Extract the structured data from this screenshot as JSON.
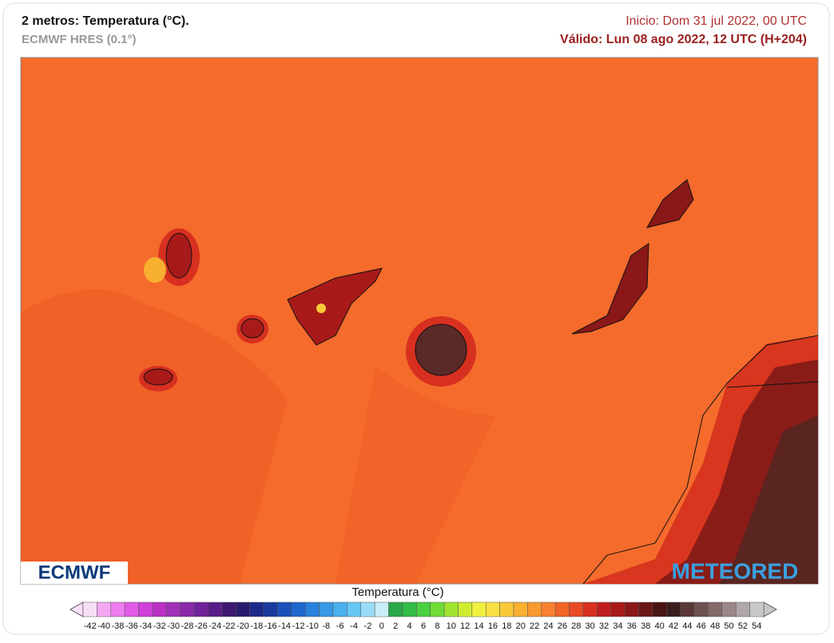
{
  "header": {
    "title": "2 metros: Temperatura (°C).",
    "model": "ECMWF HRES (0.1°)",
    "init": "Inicio: Dom 31 jul 2022, 00 UTC",
    "valid": "Válido: Lun 08 ago 2022, 12 UTC (H+204)"
  },
  "logos": {
    "left": "ECMWF",
    "right": "METEORED"
  },
  "legend": {
    "title": "Temperatura (°C)",
    "labels": [
      -42,
      -40,
      -38,
      -36,
      -34,
      -32,
      -30,
      -28,
      -26,
      -24,
      -22,
      -20,
      -18,
      -16,
      -14,
      -12,
      -10,
      -8,
      -6,
      -4,
      -2,
      0,
      2,
      4,
      6,
      8,
      10,
      12,
      14,
      16,
      18,
      20,
      22,
      24,
      26,
      28,
      30,
      32,
      34,
      36,
      38,
      40,
      42,
      44,
      46,
      48,
      50,
      52,
      54
    ],
    "colors": [
      "#f9e0f9",
      "#f4a8f4",
      "#ee7cee",
      "#e25be6",
      "#d040d8",
      "#b830c4",
      "#a030b8",
      "#8a2aa8",
      "#70229a",
      "#581c88",
      "#3e1870",
      "#2a1a6e",
      "#1e2a88",
      "#1a3aa0",
      "#1a50b8",
      "#1e66cc",
      "#2a80dc",
      "#3898e6",
      "#4ab0ee",
      "#68c8f4",
      "#98dcf8",
      "#c8eefa",
      "#2aa84a",
      "#34bc48",
      "#48d040",
      "#70dc38",
      "#a0e430",
      "#d0ec30",
      "#f0f040",
      "#f8e040",
      "#f8c838",
      "#f8b030",
      "#f89a30",
      "#f88030",
      "#f06428",
      "#e84a24",
      "#d83020",
      "#c01e1e",
      "#a81a1a",
      "#8a1818",
      "#6a1616",
      "#4a1414",
      "#3a1e1e",
      "#5a3838",
      "#6e5050",
      "#846a6a",
      "#9a8888",
      "#b0a8a8",
      "#c8c8c8"
    ]
  }
}
